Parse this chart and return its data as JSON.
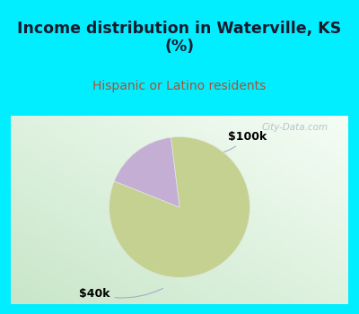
{
  "title": "Income distribution in Waterville, KS\n(%)",
  "subtitle": "Hispanic or Latino residents",
  "title_color": "#1a1a2e",
  "subtitle_color": "#b05030",
  "slices": [
    {
      "label": "$40k",
      "value": 83,
      "color": "#c5d191"
    },
    {
      "label": "$100k",
      "value": 17,
      "color": "#c4aed4"
    }
  ],
  "bg_cyan": "#00eeff",
  "chart_bg_color1": "#d6edd8",
  "chart_bg_color2": "#f0f8f0",
  "watermark": "City-Data.com",
  "startangle": 97,
  "counterclock": false,
  "label_fontsize": 9,
  "title_fontsize": 12.5,
  "subtitle_fontsize": 10,
  "annotation_color": "#aaaacc"
}
